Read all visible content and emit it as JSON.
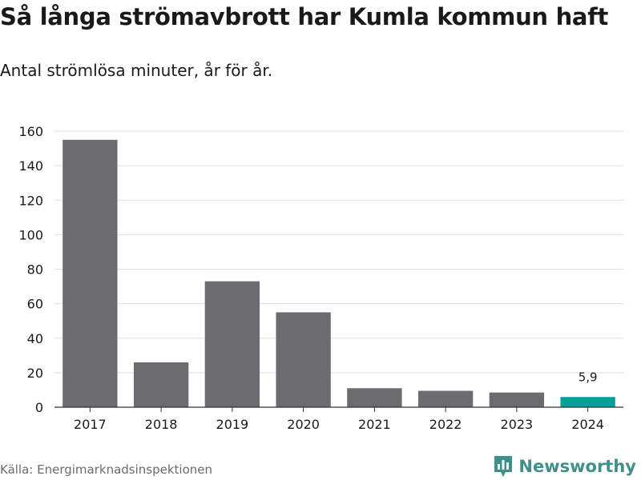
{
  "header": {
    "title": "Så långa strömavbrott har Kumla kommun haft",
    "subtitle": "Antal strömlösa minuter, år för år."
  },
  "footer": {
    "source": "Källa: Energimarknadsinspektionen",
    "brand": "Newsworthy",
    "brand_icon": "newsworthy-logo-icon"
  },
  "colors": {
    "bar": "#6c6b70",
    "highlight": "#00a19a",
    "grid": "#dedede",
    "axis": "#333333",
    "brand": "#3f8f8a"
  },
  "chart_data": {
    "type": "bar",
    "title": "Så långa strömavbrott har Kumla kommun haft",
    "subtitle": "Antal strömlösa minuter, år för år.",
    "xlabel": "",
    "ylabel": "",
    "categories": [
      "2017",
      "2018",
      "2019",
      "2020",
      "2021",
      "2022",
      "2023",
      "2024"
    ],
    "values": [
      155,
      26,
      73,
      55,
      11,
      9.5,
      8.5,
      5.9
    ],
    "highlight_index": 7,
    "data_labels": [
      {
        "index": 7,
        "text": "5,9"
      }
    ],
    "ylim": [
      0,
      160
    ],
    "yticks": [
      0,
      20,
      40,
      60,
      80,
      100,
      120,
      140,
      160
    ],
    "grid": true,
    "legend": "none"
  }
}
